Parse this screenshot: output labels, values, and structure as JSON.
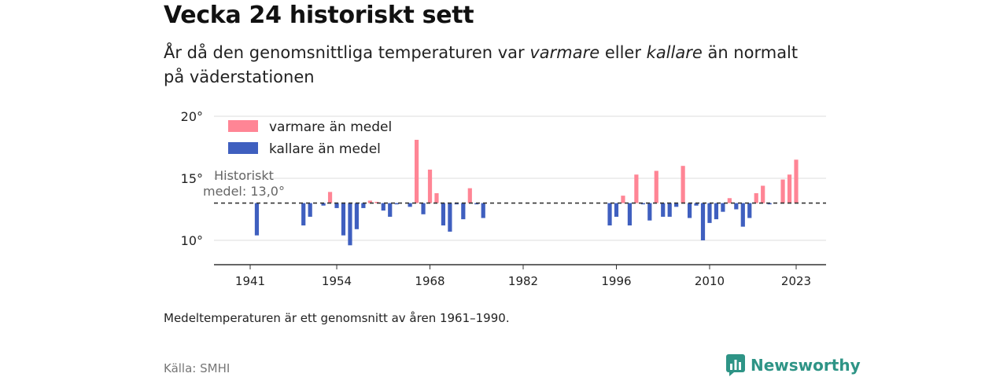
{
  "title": "Vecka 24 historiskt sett",
  "subtitle": {
    "part1": "År då den genomsnittliga temperaturen var ",
    "warm_word": "varmare",
    "part2": " eller ",
    "cold_word": "kallare",
    "part3": " än normalt på väderstationen"
  },
  "note": "Medeltemperaturen är ett genomsnitt av åren 1961–1990.",
  "source": "Källa: SMHI",
  "brand": {
    "name": "Newsworthy",
    "icon": "newsworthy-logo-icon",
    "color": "#2e9486"
  },
  "colors": {
    "warm": "#ff8595",
    "cold": "#3f5fbf",
    "reference": "#333333",
    "grid": "#dddddd"
  },
  "chart_data": {
    "type": "bar",
    "baseline": 13.0,
    "baseline_label": [
      "Historiskt",
      "medel: 13,0°"
    ],
    "ylim": [
      8,
      20
    ],
    "yticks": [
      10,
      15,
      20
    ],
    "ytick_labels": [
      "10°",
      "15°",
      "20°"
    ],
    "xlim": [
      1938.5,
      2025.5
    ],
    "xticks": [
      1941,
      1954,
      1968,
      1982,
      1996,
      2010,
      2023
    ],
    "xtick_labels": [
      "1941",
      "1954",
      "1968",
      "1982",
      "1996",
      "2010",
      "2023"
    ],
    "grid": true,
    "legend": {
      "placement": "top-left",
      "entries": [
        {
          "label": "varmare än medel",
          "color": "#ff8595"
        },
        {
          "label": "kallare än medel",
          "color": "#3f5fbf"
        }
      ]
    },
    "series": [
      {
        "x": [
          1942,
          1949,
          1950,
          1952,
          1953,
          1954,
          1955,
          1956,
          1957,
          1958,
          1959,
          1960,
          1961,
          1962,
          1963,
          1965,
          1966,
          1967,
          1968,
          1969,
          1970,
          1971,
          1972,
          1973,
          1974,
          1975,
          1976,
          1995,
          1996,
          1997,
          1998,
          1999,
          2000,
          2001,
          2002,
          2003,
          2004,
          2005,
          2006,
          2007,
          2008,
          2009,
          2010,
          2011,
          2012,
          2013,
          2014,
          2015,
          2016,
          2017,
          2018,
          2019,
          2021,
          2022,
          2023
        ],
        "values": [
          10.4,
          11.2,
          11.9,
          12.8,
          13.9,
          12.6,
          10.4,
          9.6,
          10.9,
          12.6,
          13.2,
          13.1,
          12.4,
          11.9,
          12.9,
          12.7,
          18.1,
          12.1,
          15.7,
          13.8,
          11.2,
          10.7,
          12.9,
          11.7,
          14.2,
          12.9,
          11.8,
          11.2,
          11.9,
          13.6,
          11.2,
          15.3,
          12.9,
          11.6,
          15.6,
          11.9,
          11.9,
          12.7,
          16.0,
          11.8,
          12.8,
          10.0,
          11.4,
          11.7,
          12.3,
          13.4,
          12.5,
          11.1,
          11.8,
          13.8,
          14.4,
          12.9,
          14.9,
          15.3,
          16.5
        ]
      }
    ]
  }
}
